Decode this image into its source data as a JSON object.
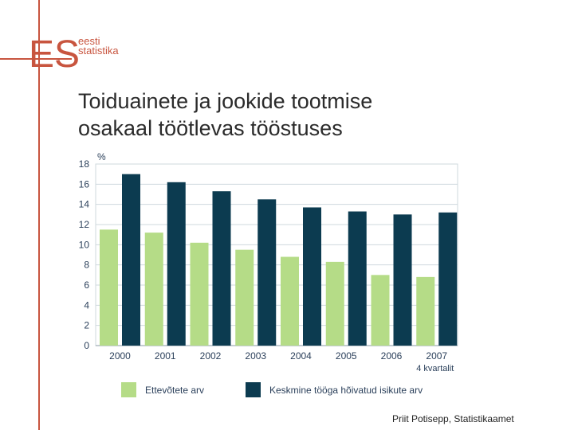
{
  "logo": {
    "monogram": "ES",
    "line1": "eesti",
    "line2": "statistika"
  },
  "slide": {
    "title_line1": "Toiduainete ja jookide tootmise",
    "title_line2": "osakaal töötlevas tööstuses",
    "credit": "Priit Potisepp, Statistikaamet"
  },
  "colors": {
    "accent": "#c8553f",
    "series1": "#b5dc87",
    "series2": "#0c3b50",
    "grid": "#cfd8de"
  },
  "chart_data": {
    "type": "bar",
    "ylabel": "%",
    "ylim": [
      0,
      18
    ],
    "yticks": [
      0,
      2,
      4,
      6,
      8,
      10,
      12,
      14,
      16,
      18
    ],
    "grid": true,
    "legend": "bottom",
    "categories": [
      "2000",
      "2001",
      "2002",
      "2003",
      "2004",
      "2005",
      "2006",
      "2007"
    ],
    "category_sublabels": [
      "",
      "",
      "",
      "",
      "",
      "",
      "",
      "4 kvartalit"
    ],
    "series": [
      {
        "name": "Ettevõtete arv",
        "values": [
          11.5,
          11.2,
          10.2,
          9.5,
          8.8,
          8.3,
          7.0,
          6.8
        ]
      },
      {
        "name": "Keskmine tööga hõivatud isikute arv",
        "values": [
          17.0,
          16.2,
          15.3,
          14.5,
          13.7,
          13.3,
          13.0,
          13.2
        ]
      }
    ]
  }
}
